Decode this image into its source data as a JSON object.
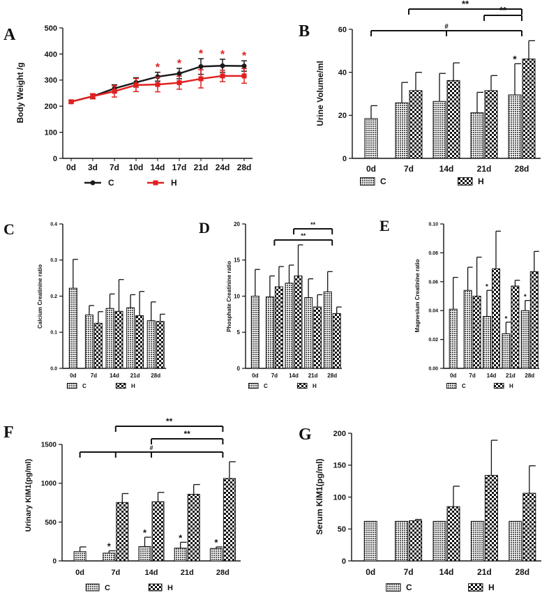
{
  "chart_data": [
    {
      "id": "A",
      "type": "line",
      "panel_letter": "A",
      "ylabel": "Body Weight /g",
      "ylim": [
        0,
        500
      ],
      "yticks": [
        0,
        100,
        200,
        300,
        400,
        500
      ],
      "categories": [
        "0d",
        "3d",
        "7d",
        "10d",
        "14d",
        "17d",
        "21d",
        "24d",
        "28d"
      ],
      "series": [
        {
          "name": "C",
          "color": "#1a1a1a",
          "values": [
            217,
            238,
            268,
            291,
            313,
            325,
            352,
            355,
            354
          ],
          "errors": [
            5,
            8,
            14,
            18,
            17,
            20,
            30,
            25,
            20
          ]
        },
        {
          "name": "H",
          "color": "#e02020",
          "values": [
            217,
            238,
            257,
            281,
            283,
            290,
            305,
            316,
            316
          ],
          "errors": [
            5,
            10,
            22,
            25,
            28,
            25,
            35,
            22,
            28
          ]
        }
      ],
      "significance": [
        {
          "category": "14d",
          "label": "*"
        },
        {
          "category": "17d",
          "label": "*"
        },
        {
          "category": "21d",
          "label": "*"
        },
        {
          "category": "24d",
          "label": "*"
        },
        {
          "category": "28d",
          "label": "*"
        }
      ],
      "significance_color": "#e02020",
      "legend": [
        "C",
        "H"
      ]
    },
    {
      "id": "B",
      "type": "bar",
      "panel_letter": "B",
      "ylabel": "Urine Volume/ml",
      "ylim": [
        0,
        60
      ],
      "yticks": [
        0,
        20,
        40,
        60
      ],
      "categories": [
        "0d",
        "7d",
        "14d",
        "21d",
        "28d"
      ],
      "series": [
        {
          "name": "C",
          "values": [
            18.5,
            25.8,
            26.5,
            21.2,
            29.5
          ],
          "errors": [
            6,
            9.5,
            13,
            9.5,
            14.5
          ]
        },
        {
          "name": "H",
          "values": [
            null,
            31.5,
            36.2,
            31.5,
            46.2
          ],
          "errors": [
            null,
            8.5,
            8.2,
            7,
            8.5
          ]
        }
      ],
      "point_marks": [
        {
          "category": "28d",
          "series": "C",
          "label": "*"
        }
      ],
      "brackets": [
        {
          "from": "7d",
          "to": "28d",
          "label": "**",
          "level": 2
        },
        {
          "from": "21d",
          "to": "28d",
          "label": "**",
          "level": 1
        },
        {
          "from": "0d",
          "to": "28d",
          "label": "#",
          "level": 0,
          "ticks": [
            "14d"
          ]
        }
      ],
      "legend": [
        "C",
        "H"
      ]
    },
    {
      "id": "C",
      "type": "bar",
      "panel_letter": "C",
      "ylabel": "Calcium Creatinine ratio",
      "ylim": [
        0,
        0.4
      ],
      "yticks": [
        0,
        0.1,
        0.2,
        0.3,
        0.4
      ],
      "ytick_labels": [
        "0.0",
        "0.1",
        "0.2",
        "0.3",
        "0.4"
      ],
      "categories": [
        "0d",
        "7d",
        "14d",
        "21d",
        "28d"
      ],
      "series": [
        {
          "name": "C",
          "values": [
            0.222,
            0.148,
            0.166,
            0.168,
            0.132
          ],
          "errors": [
            0.08,
            0.026,
            0.04,
            0.036,
            0.052
          ]
        },
        {
          "name": "H",
          "values": [
            null,
            0.125,
            0.158,
            0.146,
            0.13
          ],
          "errors": [
            null,
            0.032,
            0.088,
            0.067,
            0.02
          ]
        }
      ],
      "point_marks": [],
      "brackets": [],
      "legend": [
        "C",
        "H"
      ]
    },
    {
      "id": "D",
      "type": "bar",
      "panel_letter": "D",
      "ylabel": "Phosphate Creatinine ratio",
      "ylim": [
        0,
        20
      ],
      "yticks": [
        0,
        5,
        10,
        15,
        20
      ],
      "categories": [
        "0d",
        "7d",
        "14d",
        "21d",
        "28d"
      ],
      "series": [
        {
          "name": "C",
          "values": [
            10,
            9.9,
            11.8,
            9.8,
            10.6
          ],
          "errors": [
            3.7,
            2.9,
            2.5,
            2.6,
            2.8
          ]
        },
        {
          "name": "H",
          "values": [
            null,
            11.3,
            12.8,
            8.5,
            7.6
          ],
          "errors": [
            null,
            2.8,
            4.3,
            1.7,
            0.9
          ]
        }
      ],
      "point_marks": [],
      "brackets": [
        {
          "from": "14d",
          "to": "28d",
          "label": "**",
          "level": 1
        },
        {
          "from": "7d",
          "to": "28d",
          "label": "**",
          "level": 0
        }
      ],
      "legend": [
        "C",
        "H"
      ]
    },
    {
      "id": "E",
      "type": "bar",
      "panel_letter": "E",
      "ylabel": "Magnesium Creatinine ratio",
      "ylim": [
        0,
        0.1
      ],
      "yticks": [
        0,
        0.02,
        0.04,
        0.06,
        0.08,
        0.1
      ],
      "ytick_labels": [
        "0.00",
        "0.02",
        "0.04",
        "0.06",
        "0.08",
        "0.10"
      ],
      "categories": [
        "0d",
        "7d",
        "14d",
        "21d",
        "28d"
      ],
      "series": [
        {
          "name": "C",
          "values": [
            0.041,
            0.054,
            0.036,
            0.024,
            0.04
          ],
          "errors": [
            0.022,
            0.016,
            0.018,
            0.008,
            0.007
          ]
        },
        {
          "name": "H",
          "values": [
            null,
            0.05,
            0.069,
            0.057,
            0.067
          ],
          "errors": [
            null,
            0.027,
            0.026,
            0.004,
            0.014
          ]
        }
      ],
      "point_marks": [
        {
          "category": "14d",
          "series": "C",
          "label": "*"
        },
        {
          "category": "21d",
          "series": "C",
          "label": "*"
        },
        {
          "category": "28d",
          "series": "C",
          "label": "*"
        }
      ],
      "brackets": [],
      "legend": [
        "C",
        "H"
      ]
    },
    {
      "id": "F",
      "type": "bar",
      "panel_letter": "F",
      "ylabel": "Urinary KIM1(pg/ml)",
      "ylim": [
        0,
        1500
      ],
      "yticks": [
        0,
        500,
        1000,
        1500
      ],
      "categories": [
        "0d",
        "7d",
        "14d",
        "21d",
        "28d"
      ],
      "series": [
        {
          "name": "C",
          "values": [
            120,
            100,
            185,
            165,
            160
          ],
          "errors": [
            60,
            30,
            120,
            75,
            20
          ]
        },
        {
          "name": "H",
          "values": [
            null,
            752,
            762,
            858,
            1062
          ],
          "errors": [
            null,
            115,
            120,
            125,
            215
          ]
        }
      ],
      "point_marks": [
        {
          "category": "7d",
          "series": "C",
          "label": "*"
        },
        {
          "category": "14d",
          "series": "C",
          "label": "*"
        },
        {
          "category": "21d",
          "series": "C",
          "label": "*"
        },
        {
          "category": "28d",
          "series": "C",
          "label": "*"
        }
      ],
      "brackets": [
        {
          "from": "7d",
          "to": "28d",
          "label": "**",
          "level": 2
        },
        {
          "from": "14d",
          "to": "28d",
          "label": "**",
          "level": 1
        },
        {
          "from": "0d",
          "to": "28d",
          "label": "#",
          "level": 0,
          "ticks": [
            "7d",
            "14d"
          ]
        }
      ],
      "legend": [
        "C",
        "H"
      ]
    },
    {
      "id": "G",
      "type": "bar",
      "panel_letter": "G",
      "ylabel": "Serum KIM1(pg/ml)",
      "ylim": [
        0,
        200
      ],
      "yticks": [
        0,
        50,
        100,
        150,
        200
      ],
      "categories": [
        "0d",
        "7d",
        "14d",
        "21d",
        "28d"
      ],
      "series": [
        {
          "name": "C",
          "values": [
            62,
            62,
            62,
            62,
            62
          ],
          "errors": [
            null,
            null,
            null,
            null,
            null
          ]
        },
        {
          "name": "H",
          "values": [
            null,
            63,
            85,
            134,
            106
          ],
          "errors": [
            null,
            2,
            32,
            55,
            43
          ]
        }
      ],
      "point_marks": [],
      "brackets": [],
      "legend": [
        "C",
        "H"
      ]
    }
  ]
}
